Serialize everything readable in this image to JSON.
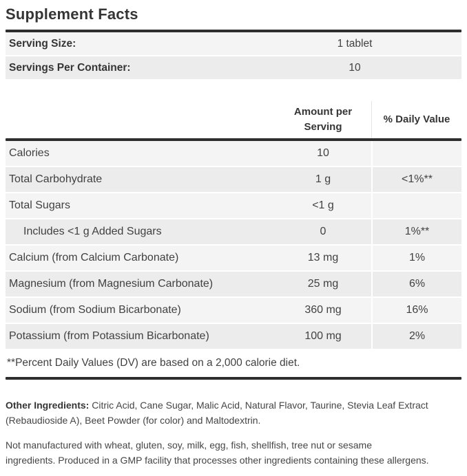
{
  "title": "Supplement Facts",
  "serving_info": [
    {
      "label": "Serving Size:",
      "value": "1 tablet"
    },
    {
      "label": "Servings Per Container:",
      "value": "10"
    }
  ],
  "table": {
    "amount_header": "Amount per Serving",
    "dv_header": "% Daily Value",
    "rows": [
      {
        "name": "Calories",
        "amount": "10",
        "dv": "",
        "indent": false
      },
      {
        "name": "Total Carbohydrate",
        "amount": "1 g",
        "dv": "<1%**",
        "indent": false
      },
      {
        "name": "Total Sugars",
        "amount": "<1 g",
        "dv": "",
        "indent": false
      },
      {
        "name": "Includes <1 g Added Sugars",
        "amount": "0",
        "dv": "1%**",
        "indent": true
      },
      {
        "name": "Calcium (from Calcium Carbonate)",
        "amount": "13 mg",
        "dv": "1%",
        "indent": false
      },
      {
        "name": "Magnesium (from Magnesium Carbonate)",
        "amount": "25 mg",
        "dv": "6%",
        "indent": false
      },
      {
        "name": "Sodium (from Sodium Bicarbonate)",
        "amount": "360 mg",
        "dv": "16%",
        "indent": false
      },
      {
        "name": "Potassium (from Potassium Bicarbonate)",
        "amount": "100 mg",
        "dv": "2%",
        "indent": false
      }
    ],
    "footnote": "**Percent Daily Values (DV) are based on a 2,000 calorie diet."
  },
  "other_ingredients": {
    "label": "Other Ingredients:",
    "text": " Citric Acid, Cane Sugar, Malic Acid, Natural Flavor, Taurine, Stevia Leaf Extract\n(Rebaudioside A), Beet Powder (for color) and Maltodextrin."
  },
  "allergen_statement": "Not manufactured with wheat, gluten, soy, milk, egg, fish, shellfish, tree nut or sesame\ningredients. Produced in a GMP facility that processes other ingredients containing these allergens.",
  "colors": {
    "rule": "#2e2e2e",
    "row_light": "#f4f4f4",
    "row_dark": "#ececec",
    "text": "#414141"
  }
}
